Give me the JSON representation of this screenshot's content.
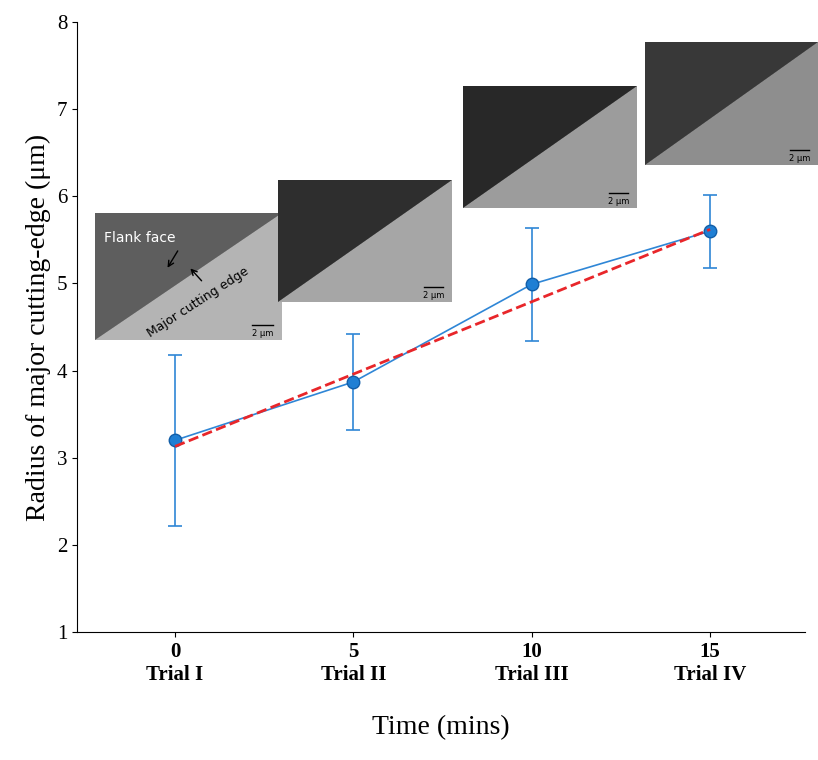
{
  "chart_data": {
    "type": "line",
    "x_label": "Time (mins)",
    "y_label": "Radius of major cutting-edge (μm)",
    "x": [
      0,
      5,
      10,
      15
    ],
    "series": [
      {
        "type": "line",
        "color": "#2f86d6",
        "marker": "o",
        "line_style": "solid",
        "values": [
          3.2,
          3.87,
          4.99,
          5.6
        ],
        "errors": [
          0.98,
          0.55,
          0.65,
          0.42
        ]
      },
      {
        "type": "line",
        "color": "#e8262a",
        "line_style": "dashed",
        "values": [
          3.13,
          3.96,
          4.79,
          5.62
        ]
      }
    ],
    "xlim": [
      -2.75,
      17.66
    ],
    "xticks": [
      {
        "value": 0,
        "label": "0\nTrial I"
      },
      {
        "value": 5,
        "label": "5\nTrial II"
      },
      {
        "value": 10,
        "label": "10\nTrial III"
      },
      {
        "value": 15,
        "label": "15\nTrial IV"
      }
    ],
    "ylim": [
      1,
      8
    ],
    "yticks": [
      1,
      2,
      3,
      4,
      5,
      6,
      7,
      8
    ],
    "grid": false,
    "inset_labels": [
      [
        "Flank face",
        "Major cutting edge",
        "2 μm"
      ],
      [
        "2 μm"
      ],
      [
        "2 μm"
      ],
      [
        "2 μm"
      ]
    ]
  }
}
